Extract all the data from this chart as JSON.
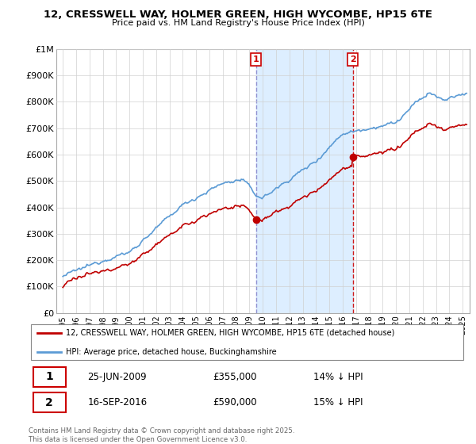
{
  "title": "12, CRESSWELL WAY, HOLMER GREEN, HIGH WYCOMBE, HP15 6TE",
  "subtitle": "Price paid vs. HM Land Registry's House Price Index (HPI)",
  "ylabel_ticks": [
    "£0",
    "£100K",
    "£200K",
    "£300K",
    "£400K",
    "£500K",
    "£600K",
    "£700K",
    "£800K",
    "£900K",
    "£1M"
  ],
  "ytick_values": [
    0,
    100000,
    200000,
    300000,
    400000,
    500000,
    600000,
    700000,
    800000,
    900000,
    1000000
  ],
  "ylim": [
    0,
    1000000
  ],
  "hpi_color": "#5b9bd5",
  "price_color": "#c00000",
  "background_color": "#ffffff",
  "grid_color": "#d0d0d0",
  "transaction1": {
    "date": "25-JUN-2009",
    "price": 355000,
    "hpi_diff": "14% ↓ HPI",
    "label": "1",
    "x_year": 2009.5
  },
  "transaction2": {
    "date": "16-SEP-2016",
    "price": 590000,
    "hpi_diff": "15% ↓ HPI",
    "label": "2",
    "x_year": 2016.75
  },
  "legend_line1": "12, CRESSWELL WAY, HOLMER GREEN, HIGH WYCOMBE, HP15 6TE (detached house)",
  "legend_line2": "HPI: Average price, detached house, Buckinghamshire",
  "footer": "Contains HM Land Registry data © Crown copyright and database right 2025.\nThis data is licensed under the Open Government Licence v3.0.",
  "xlim_start": 1994.5,
  "xlim_end": 2025.5,
  "xtick_years": [
    1995,
    1996,
    1997,
    1998,
    1999,
    2000,
    2001,
    2002,
    2003,
    2004,
    2005,
    2006,
    2007,
    2008,
    2009,
    2010,
    2011,
    2012,
    2013,
    2014,
    2015,
    2016,
    2017,
    2018,
    2019,
    2020,
    2021,
    2022,
    2023,
    2024,
    2025
  ],
  "vline1_color": "#8888cc",
  "vline2_color": "#cc0000",
  "span_color": "#ddeeff",
  "label_box_color": "#cc0000"
}
